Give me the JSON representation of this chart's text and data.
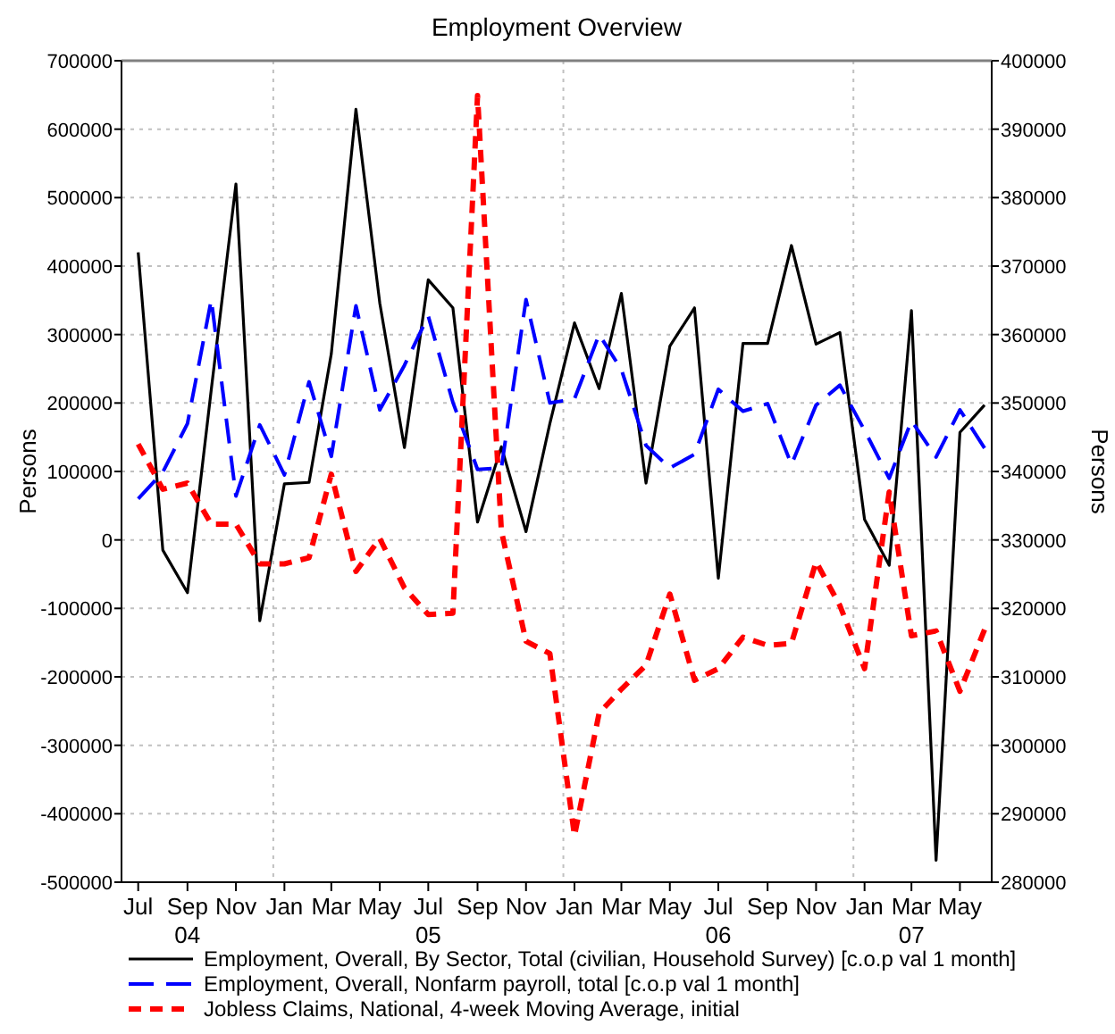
{
  "chart_data": {
    "type": "line",
    "title": "Employment Overview",
    "ylabel": "Persons",
    "y2label": "Persons",
    "x": [
      "2004-07-15",
      "2004-08-15",
      "2004-09-15",
      "2004-10-15",
      "2004-11-15",
      "2004-12-15",
      "2005-01-15",
      "2005-02-15",
      "2005-03-15",
      "2005-04-15",
      "2005-05-15",
      "2005-06-15",
      "2005-07-15",
      "2005-08-15",
      "2005-09-15",
      "2005-10-15",
      "2005-11-15",
      "2005-12-15",
      "2006-01-15",
      "2006-02-15",
      "2006-03-15",
      "2006-04-15",
      "2006-05-15",
      "2006-06-15",
      "2006-07-15",
      "2006-08-15",
      "2006-09-15",
      "2006-10-15",
      "2006-11-15",
      "2006-12-15",
      "2007-01-15",
      "2007-02-15",
      "2007-03-15",
      "2007-04-15",
      "2007-05-15",
      "2007-06-15"
    ],
    "series": [
      {
        "name": "Employment, Overall, By Sector, Total (civilian, Household Survey) [c.o.p val 1 month]",
        "color": "#000000",
        "line_style": "solid",
        "values": [
          420000,
          -15000,
          -77000,
          220000,
          520000,
          -118000,
          82000,
          84000,
          272000,
          629000,
          346000,
          135000,
          380000,
          339000,
          26000,
          136000,
          12000,
          170000,
          317000,
          221000,
          360000,
          83000,
          283000,
          339000,
          -56000,
          287000,
          287000,
          430000,
          286000,
          303000,
          30000,
          -37000,
          335000,
          -468000,
          157000,
          197000
        ]
      },
      {
        "name": "Employment, Overall, Nonfarm payroll, total [c.o.p val 1 month]",
        "color": "#0000ff",
        "line_style": "dashed",
        "values": [
          60000,
          99000,
          170000,
          351000,
          64000,
          168000,
          95000,
          231000,
          122000,
          342000,
          190000,
          255000,
          327000,
          201000,
          103000,
          105000,
          351000,
          200000,
          206000,
          300000,
          249000,
          138000,
          105000,
          125000,
          220000,
          188000,
          199000,
          110000,
          197000,
          226000,
          160000,
          90000,
          174000,
          121000,
          190000,
          134000
        ]
      },
      {
        "name": "Jobless Claims, National, 4-week Moving Average, initial",
        "color": "#ff0000",
        "line_style": "dotted",
        "axis": "y2",
        "values": [
          344000,
          337400,
          338300,
          332300,
          332300,
          326500,
          326500,
          327400,
          339600,
          325400,
          330200,
          323000,
          319100,
          319300,
          394900,
          331300,
          315200,
          313400,
          286800,
          304700,
          308200,
          311700,
          322100,
          309500,
          311200,
          315800,
          314600,
          314900,
          326800,
          320400,
          311200,
          337000,
          316000,
          316700,
          307900,
          316900
        ]
      }
    ],
    "xlim": [
      "2004-06-24",
      "2007-06-24"
    ],
    "xticks": [
      {
        "value": "2004-07-15",
        "label": "Jul"
      },
      {
        "value": "2004-09-15",
        "label": "Sep\n04"
      },
      {
        "value": "2004-11-15",
        "label": "Nov"
      },
      {
        "value": "2005-01-15",
        "label": "Jan"
      },
      {
        "value": "2005-03-15",
        "label": "Mar"
      },
      {
        "value": "2005-05-15",
        "label": "May"
      },
      {
        "value": "2005-07-15",
        "label": "Jul\n05"
      },
      {
        "value": "2005-09-15",
        "label": "Sep"
      },
      {
        "value": "2005-11-15",
        "label": "Nov"
      },
      {
        "value": "2006-01-15",
        "label": "Jan"
      },
      {
        "value": "2006-03-15",
        "label": "Mar"
      },
      {
        "value": "2006-05-15",
        "label": "May"
      },
      {
        "value": "2006-07-15",
        "label": "Jul\n06"
      },
      {
        "value": "2006-09-15",
        "label": "Sep"
      },
      {
        "value": "2006-11-15",
        "label": "Nov"
      },
      {
        "value": "2007-01-15",
        "label": "Jan"
      },
      {
        "value": "2007-03-15",
        "label": "Mar\n07"
      },
      {
        "value": "2007-05-15",
        "label": "May"
      }
    ],
    "ylim": [
      -500000,
      700000
    ],
    "yticks": [
      -500000,
      -400000,
      -300000,
      -200000,
      -100000,
      0,
      100000,
      200000,
      300000,
      400000,
      500000,
      600000,
      700000
    ],
    "y2lim": [
      280000,
      400000
    ],
    "y2ticks": [
      280000,
      290000,
      300000,
      310000,
      320000,
      330000,
      340000,
      350000,
      360000,
      370000,
      380000,
      390000,
      400000
    ],
    "ref_lines": [
      {
        "axis": "x",
        "value": "2005-01-01",
        "color": "#c0c0c0",
        "line_style": "dotted"
      },
      {
        "axis": "x",
        "value": "2006-01-01",
        "color": "#c0c0c0",
        "line_style": "dotted"
      },
      {
        "axis": "x",
        "value": "2007-01-01",
        "color": "#c0c0c0",
        "line_style": "dotted"
      }
    ],
    "grid": "y",
    "legend": "bottom",
    "marker": "none"
  }
}
